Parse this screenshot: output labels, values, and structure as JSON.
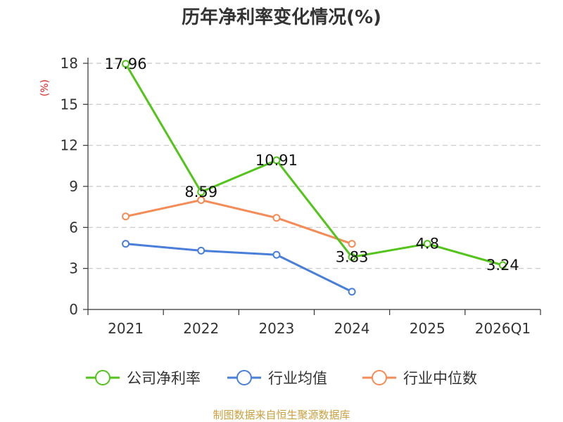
{
  "chart_data": {
    "type": "line",
    "title": "历年净利率变化情况(%)",
    "ylabel": "(%)",
    "xlabel": "",
    "categories": [
      "2021",
      "2022",
      "2023",
      "2024",
      "2025",
      "2026Q1"
    ],
    "ylim": [
      0,
      18
    ],
    "yticks": [
      0,
      3,
      6,
      9,
      12,
      15,
      18
    ],
    "grid": true,
    "legend_position": "bottom",
    "series": [
      {
        "name": "公司净利率",
        "color": "#52c41a",
        "values": [
          17.96,
          8.59,
          10.91,
          3.83,
          4.8,
          3.24
        ],
        "labels": [
          "17.96",
          "8.59",
          "10.91",
          "3.83",
          "4.8",
          "3.24"
        ]
      },
      {
        "name": "行业均值",
        "color": "#4a7fd9",
        "values": [
          4.8,
          4.3,
          4.0,
          1.3,
          null,
          null
        ]
      },
      {
        "name": "行业中位数",
        "color": "#f58b57",
        "values": [
          6.8,
          8.0,
          6.7,
          4.8,
          null,
          null
        ]
      }
    ]
  },
  "colors": {
    "ylabel": "#e02020",
    "source": "#c8a040",
    "axis": "#333333",
    "grid": "#c8c8c8"
  },
  "source_text": "制图数据来自恒生聚源数据库"
}
